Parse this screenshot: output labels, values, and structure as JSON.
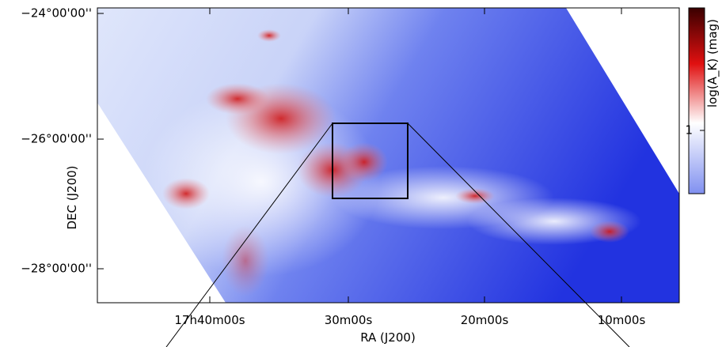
{
  "axes": {
    "x_label": "RA (J200)",
    "y_label": "DEC (J200)",
    "x_ticks": [
      "17h40m00s",
      "30m00s",
      "20m00s",
      "10m00s"
    ],
    "y_ticks": [
      "−24°00'00''",
      "−26°00'00''",
      "−28°00'00''"
    ]
  },
  "colorbar": {
    "label": "log(A_K) (mag)",
    "ticks": [
      "1"
    ]
  }
}
